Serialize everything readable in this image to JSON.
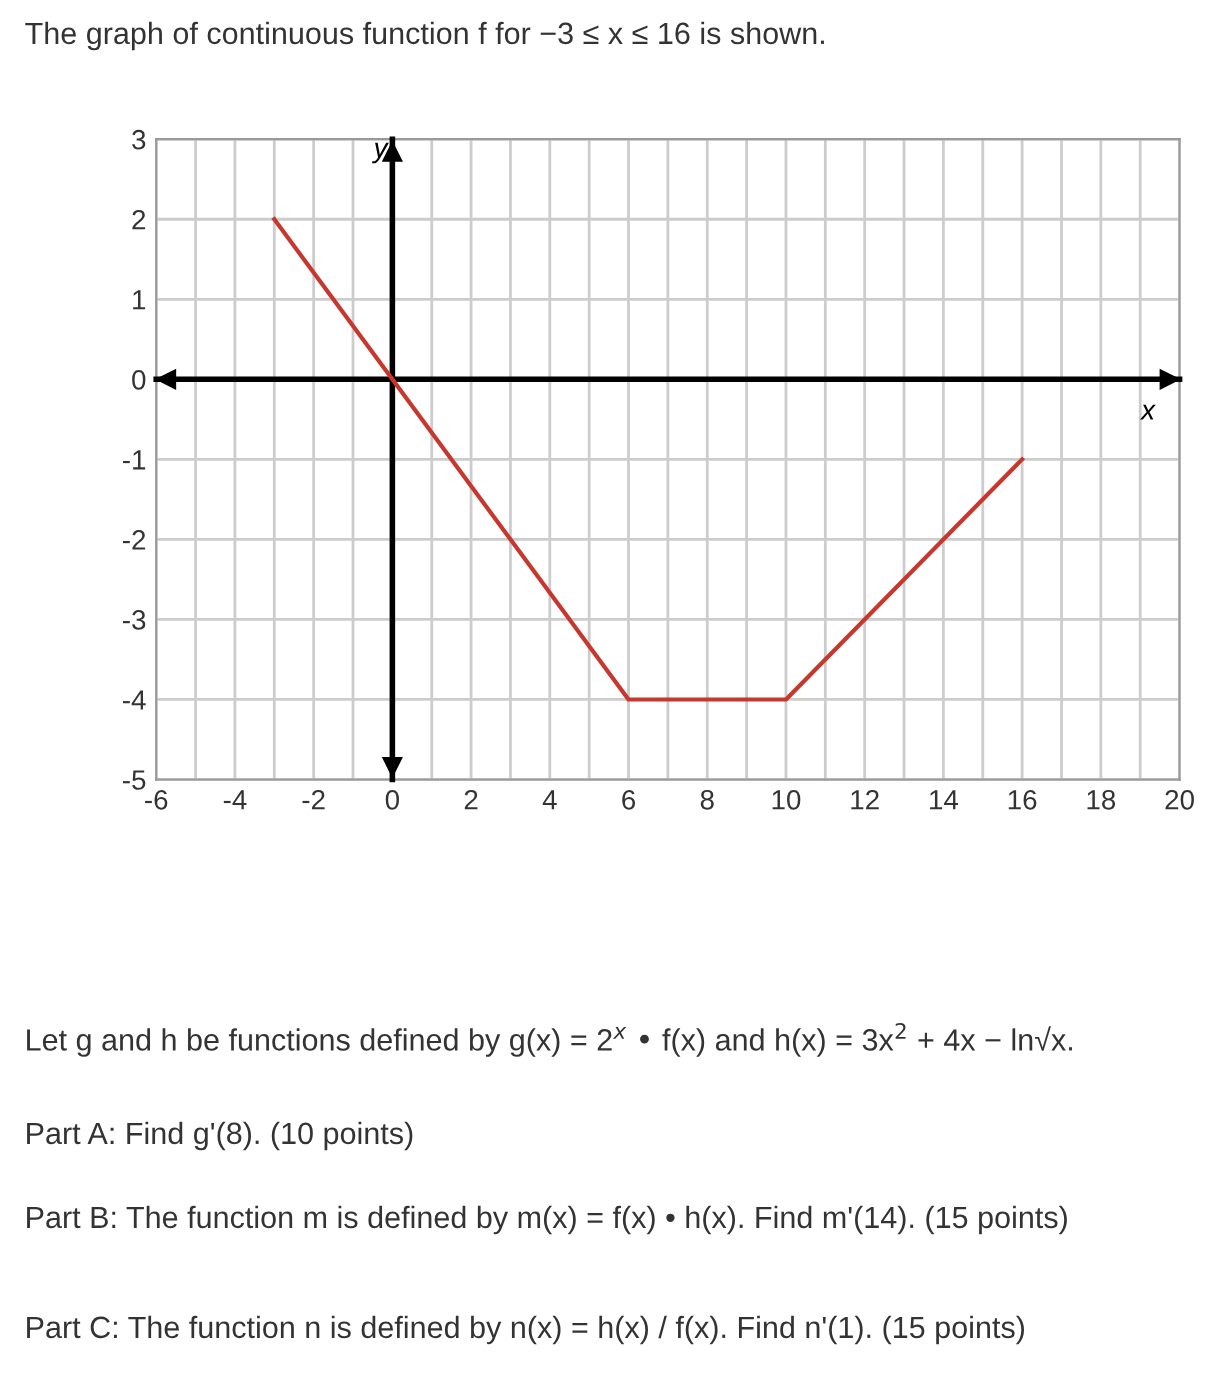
{
  "chart_data": {
    "type": "line",
    "title": "The graph of continuous function f for −3 ≤ x ≤ 16 is shown.",
    "xlabel": "x",
    "ylabel": "y",
    "x": [
      -3,
      0,
      6,
      10,
      16
    ],
    "series": [
      {
        "color": "#c8372d",
        "values": [
          2,
          0,
          -4,
          -4,
          -1
        ]
      }
    ],
    "xlim": [
      -6,
      20
    ],
    "ylim": [
      -5,
      3
    ],
    "xticks": [
      -6,
      {
        "value": -5,
        "label": null
      },
      -4,
      {
        "value": -3,
        "label": null
      },
      -2,
      {
        "value": -1,
        "label": null
      },
      0,
      {
        "value": 1,
        "label": null
      },
      2,
      {
        "value": 3,
        "label": null
      },
      4,
      {
        "value": 5,
        "label": null
      },
      6,
      {
        "value": 7,
        "label": null
      },
      8,
      {
        "value": 9,
        "label": null
      },
      10,
      {
        "value": 11,
        "label": null
      },
      12,
      {
        "value": 13,
        "label": null
      },
      14,
      {
        "value": 15,
        "label": null
      },
      16,
      {
        "value": 17,
        "label": null
      },
      18,
      {
        "value": 19,
        "label": null
      },
      20
    ],
    "yticks": [
      -5,
      -4,
      -3,
      -2,
      -1,
      0,
      1,
      2,
      3
    ],
    "grid": true,
    "marker": "none",
    "line_style": "solid",
    "annotations": [
      "Let g and h be functions defined by g(x) = 2$^{x}$ • f(x) and h(x) = 3x$^{2}$ + 4x − ln√x.",
      "Part A: Find g'(8). (10 points)",
      "Part B: The function m is defined by m(x) = f(x) • h(x). Find m'(14). (15 points)",
      "Part C: The function n is defined by n(x) = h(x) / f(x). Find n'(1). (15 points)"
    ]
  }
}
